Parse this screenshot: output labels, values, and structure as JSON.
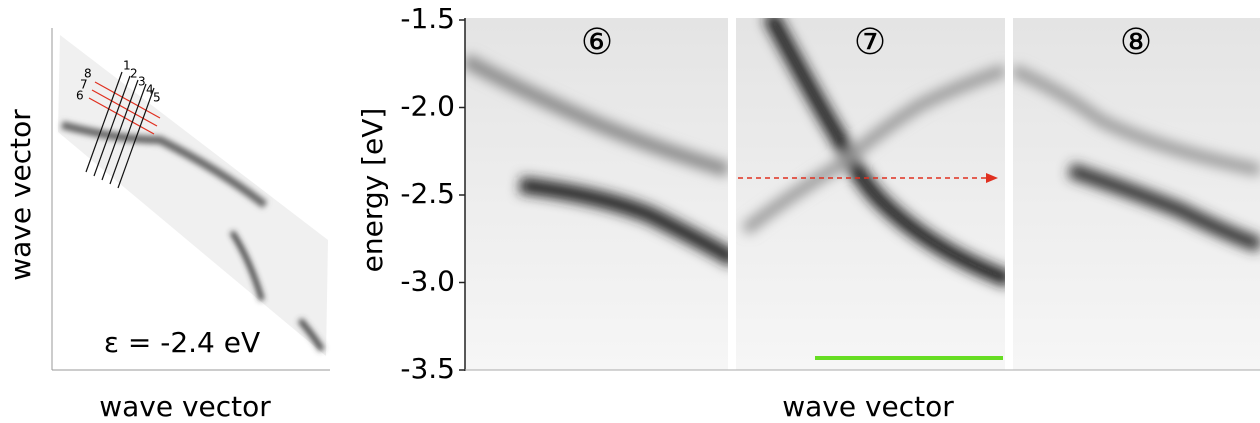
{
  "left_panel": {
    "y_label": "wave vector",
    "x_label": "wave vector",
    "annotation": "ε = -2.4 eV",
    "line_labels": [
      "1",
      "2",
      "3",
      "4",
      "5",
      "6",
      "7",
      "8"
    ]
  },
  "right_panel": {
    "y_label": "energy [eV]",
    "x_label": "wave vector",
    "ylim": [
      -1.5,
      -3.5
    ],
    "yticks": [
      -1.5,
      {
        "value": -2,
        "label": "-2.0"
      },
      -2.5,
      {
        "value": -3,
        "label": "-3.0"
      },
      -3.5
    ],
    "panel_labels": [
      "⑥",
      "⑦",
      "⑧"
    ]
  }
}
